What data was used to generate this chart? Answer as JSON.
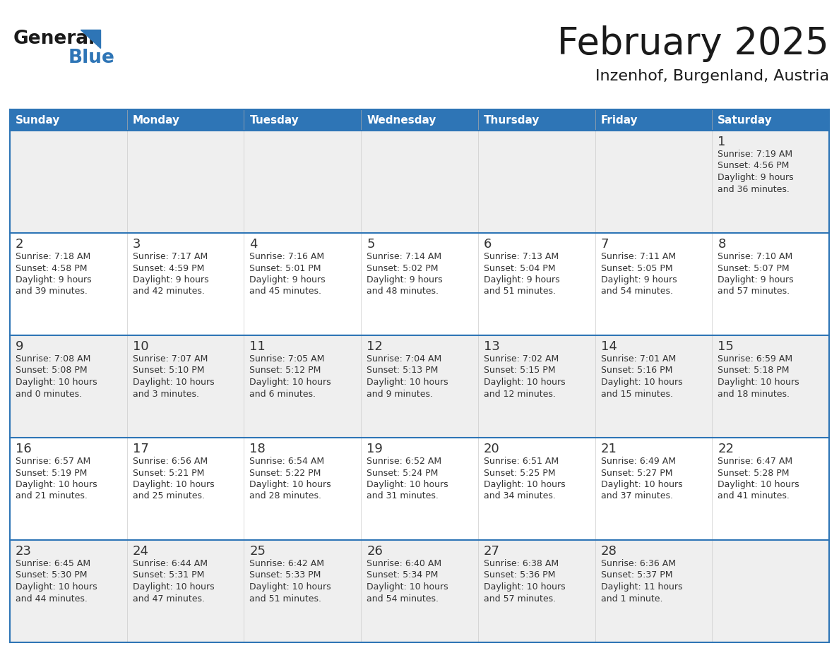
{
  "title": "February 2025",
  "subtitle": "Inzenhof, Burgenland, Austria",
  "header_bg": "#2E75B6",
  "header_text": "#FFFFFF",
  "row_bg_odd": "#EFEFEF",
  "row_bg_even": "#FFFFFF",
  "cell_border_color": "#2E75B6",
  "day_number_color": "#333333",
  "info_text_color": "#333333",
  "weekdays": [
    "Sunday",
    "Monday",
    "Tuesday",
    "Wednesday",
    "Thursday",
    "Friday",
    "Saturday"
  ],
  "logo_general_color": "#1A1A1A",
  "logo_blue_color": "#2E75B6",
  "days": [
    {
      "day": 1,
      "col": 6,
      "row": 0,
      "sunrise": "7:19 AM",
      "sunset": "4:56 PM",
      "daylight_line1": "Daylight: 9 hours",
      "daylight_line2": "and 36 minutes."
    },
    {
      "day": 2,
      "col": 0,
      "row": 1,
      "sunrise": "7:18 AM",
      "sunset": "4:58 PM",
      "daylight_line1": "Daylight: 9 hours",
      "daylight_line2": "and 39 minutes."
    },
    {
      "day": 3,
      "col": 1,
      "row": 1,
      "sunrise": "7:17 AM",
      "sunset": "4:59 PM",
      "daylight_line1": "Daylight: 9 hours",
      "daylight_line2": "and 42 minutes."
    },
    {
      "day": 4,
      "col": 2,
      "row": 1,
      "sunrise": "7:16 AM",
      "sunset": "5:01 PM",
      "daylight_line1": "Daylight: 9 hours",
      "daylight_line2": "and 45 minutes."
    },
    {
      "day": 5,
      "col": 3,
      "row": 1,
      "sunrise": "7:14 AM",
      "sunset": "5:02 PM",
      "daylight_line1": "Daylight: 9 hours",
      "daylight_line2": "and 48 minutes."
    },
    {
      "day": 6,
      "col": 4,
      "row": 1,
      "sunrise": "7:13 AM",
      "sunset": "5:04 PM",
      "daylight_line1": "Daylight: 9 hours",
      "daylight_line2": "and 51 minutes."
    },
    {
      "day": 7,
      "col": 5,
      "row": 1,
      "sunrise": "7:11 AM",
      "sunset": "5:05 PM",
      "daylight_line1": "Daylight: 9 hours",
      "daylight_line2": "and 54 minutes."
    },
    {
      "day": 8,
      "col": 6,
      "row": 1,
      "sunrise": "7:10 AM",
      "sunset": "5:07 PM",
      "daylight_line1": "Daylight: 9 hours",
      "daylight_line2": "and 57 minutes."
    },
    {
      "day": 9,
      "col": 0,
      "row": 2,
      "sunrise": "7:08 AM",
      "sunset": "5:08 PM",
      "daylight_line1": "Daylight: 10 hours",
      "daylight_line2": "and 0 minutes."
    },
    {
      "day": 10,
      "col": 1,
      "row": 2,
      "sunrise": "7:07 AM",
      "sunset": "5:10 PM",
      "daylight_line1": "Daylight: 10 hours",
      "daylight_line2": "and 3 minutes."
    },
    {
      "day": 11,
      "col": 2,
      "row": 2,
      "sunrise": "7:05 AM",
      "sunset": "5:12 PM",
      "daylight_line1": "Daylight: 10 hours",
      "daylight_line2": "and 6 minutes."
    },
    {
      "day": 12,
      "col": 3,
      "row": 2,
      "sunrise": "7:04 AM",
      "sunset": "5:13 PM",
      "daylight_line1": "Daylight: 10 hours",
      "daylight_line2": "and 9 minutes."
    },
    {
      "day": 13,
      "col": 4,
      "row": 2,
      "sunrise": "7:02 AM",
      "sunset": "5:15 PM",
      "daylight_line1": "Daylight: 10 hours",
      "daylight_line2": "and 12 minutes."
    },
    {
      "day": 14,
      "col": 5,
      "row": 2,
      "sunrise": "7:01 AM",
      "sunset": "5:16 PM",
      "daylight_line1": "Daylight: 10 hours",
      "daylight_line2": "and 15 minutes."
    },
    {
      "day": 15,
      "col": 6,
      "row": 2,
      "sunrise": "6:59 AM",
      "sunset": "5:18 PM",
      "daylight_line1": "Daylight: 10 hours",
      "daylight_line2": "and 18 minutes."
    },
    {
      "day": 16,
      "col": 0,
      "row": 3,
      "sunrise": "6:57 AM",
      "sunset": "5:19 PM",
      "daylight_line1": "Daylight: 10 hours",
      "daylight_line2": "and 21 minutes."
    },
    {
      "day": 17,
      "col": 1,
      "row": 3,
      "sunrise": "6:56 AM",
      "sunset": "5:21 PM",
      "daylight_line1": "Daylight: 10 hours",
      "daylight_line2": "and 25 minutes."
    },
    {
      "day": 18,
      "col": 2,
      "row": 3,
      "sunrise": "6:54 AM",
      "sunset": "5:22 PM",
      "daylight_line1": "Daylight: 10 hours",
      "daylight_line2": "and 28 minutes."
    },
    {
      "day": 19,
      "col": 3,
      "row": 3,
      "sunrise": "6:52 AM",
      "sunset": "5:24 PM",
      "daylight_line1": "Daylight: 10 hours",
      "daylight_line2": "and 31 minutes."
    },
    {
      "day": 20,
      "col": 4,
      "row": 3,
      "sunrise": "6:51 AM",
      "sunset": "5:25 PM",
      "daylight_line1": "Daylight: 10 hours",
      "daylight_line2": "and 34 minutes."
    },
    {
      "day": 21,
      "col": 5,
      "row": 3,
      "sunrise": "6:49 AM",
      "sunset": "5:27 PM",
      "daylight_line1": "Daylight: 10 hours",
      "daylight_line2": "and 37 minutes."
    },
    {
      "day": 22,
      "col": 6,
      "row": 3,
      "sunrise": "6:47 AM",
      "sunset": "5:28 PM",
      "daylight_line1": "Daylight: 10 hours",
      "daylight_line2": "and 41 minutes."
    },
    {
      "day": 23,
      "col": 0,
      "row": 4,
      "sunrise": "6:45 AM",
      "sunset": "5:30 PM",
      "daylight_line1": "Daylight: 10 hours",
      "daylight_line2": "and 44 minutes."
    },
    {
      "day": 24,
      "col": 1,
      "row": 4,
      "sunrise": "6:44 AM",
      "sunset": "5:31 PM",
      "daylight_line1": "Daylight: 10 hours",
      "daylight_line2": "and 47 minutes."
    },
    {
      "day": 25,
      "col": 2,
      "row": 4,
      "sunrise": "6:42 AM",
      "sunset": "5:33 PM",
      "daylight_line1": "Daylight: 10 hours",
      "daylight_line2": "and 51 minutes."
    },
    {
      "day": 26,
      "col": 3,
      "row": 4,
      "sunrise": "6:40 AM",
      "sunset": "5:34 PM",
      "daylight_line1": "Daylight: 10 hours",
      "daylight_line2": "and 54 minutes."
    },
    {
      "day": 27,
      "col": 4,
      "row": 4,
      "sunrise": "6:38 AM",
      "sunset": "5:36 PM",
      "daylight_line1": "Daylight: 10 hours",
      "daylight_line2": "and 57 minutes."
    },
    {
      "day": 28,
      "col": 5,
      "row": 4,
      "sunrise": "6:36 AM",
      "sunset": "5:37 PM",
      "daylight_line1": "Daylight: 11 hours",
      "daylight_line2": "and 1 minute."
    }
  ],
  "num_rows": 5,
  "num_cols": 7
}
